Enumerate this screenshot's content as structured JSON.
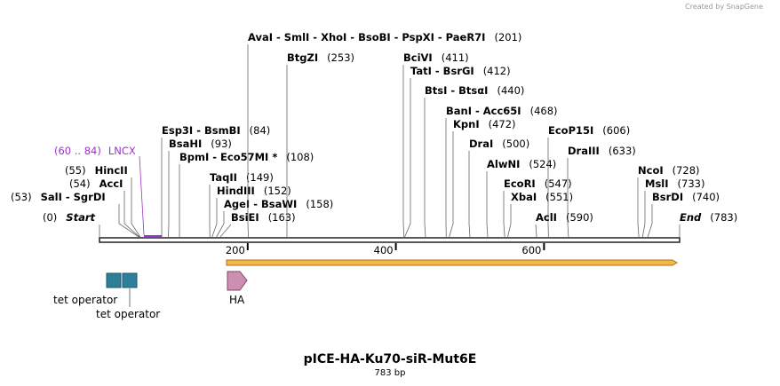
{
  "header": {
    "credit": "Created by SnapGene"
  },
  "map": {
    "title": "pICE-HA-Ku70-siR-Mut6E",
    "length": "783 bp",
    "ruler": [
      "200",
      "400",
      "600"
    ],
    "sites": [
      {
        "name": "Start",
        "position": "(0)"
      },
      {
        "name": "SalI  -  SgrDI",
        "position": "(53)"
      },
      {
        "name": "AccI",
        "position": "(54)"
      },
      {
        "name": "HincII",
        "position": "(55)"
      },
      {
        "name": "Esp3I  -  BsmBI",
        "position": "(84)"
      },
      {
        "name": "BsaHI",
        "position": "(93)"
      },
      {
        "name": "BpmI  -  Eco57MI *",
        "position": "(108)"
      },
      {
        "name": "TaqII",
        "position": "(149)"
      },
      {
        "name": "HindIII",
        "position": "(152)"
      },
      {
        "name": "AgeI  -  BsaWI",
        "position": "(158)"
      },
      {
        "name": "BsiEI",
        "position": "(163)"
      },
      {
        "name": "AvaI  -  SmlI  -  XhoI  -  BsoBI  -  PspXI  -  PaeR7I",
        "position": "(201)"
      },
      {
        "name": "BtgZI",
        "position": "(253)"
      },
      {
        "name": "BciVI",
        "position": "(411)"
      },
      {
        "name": "TatI  -  BsrGI",
        "position": "(412)"
      },
      {
        "name": "BtsI  -  BtsαI",
        "position": "(440)"
      },
      {
        "name": "BanI  -  Acc65I",
        "position": "(468)"
      },
      {
        "name": "KpnI",
        "position": "(472)"
      },
      {
        "name": "DraI",
        "position": "(500)"
      },
      {
        "name": "AlwNI",
        "position": "(524)"
      },
      {
        "name": "EcoP15I",
        "position": "(606)"
      },
      {
        "name": "DraIII",
        "position": "(633)"
      },
      {
        "name": "EcoRI",
        "position": "(547)"
      },
      {
        "name": "XbaI",
        "position": "(551)"
      },
      {
        "name": "AclI",
        "position": "(590)"
      },
      {
        "name": "NcoI",
        "position": "(728)"
      },
      {
        "name": "MslI",
        "position": "(733)"
      },
      {
        "name": "BsrDI",
        "position": "(740)"
      },
      {
        "name": "End",
        "position": "(783)"
      }
    ],
    "features": [
      {
        "name": "LNCX",
        "range": "(60 .. 84)"
      },
      {
        "name": "tet operator"
      },
      {
        "name": "tet operator"
      },
      {
        "name": "HA"
      }
    ]
  }
}
